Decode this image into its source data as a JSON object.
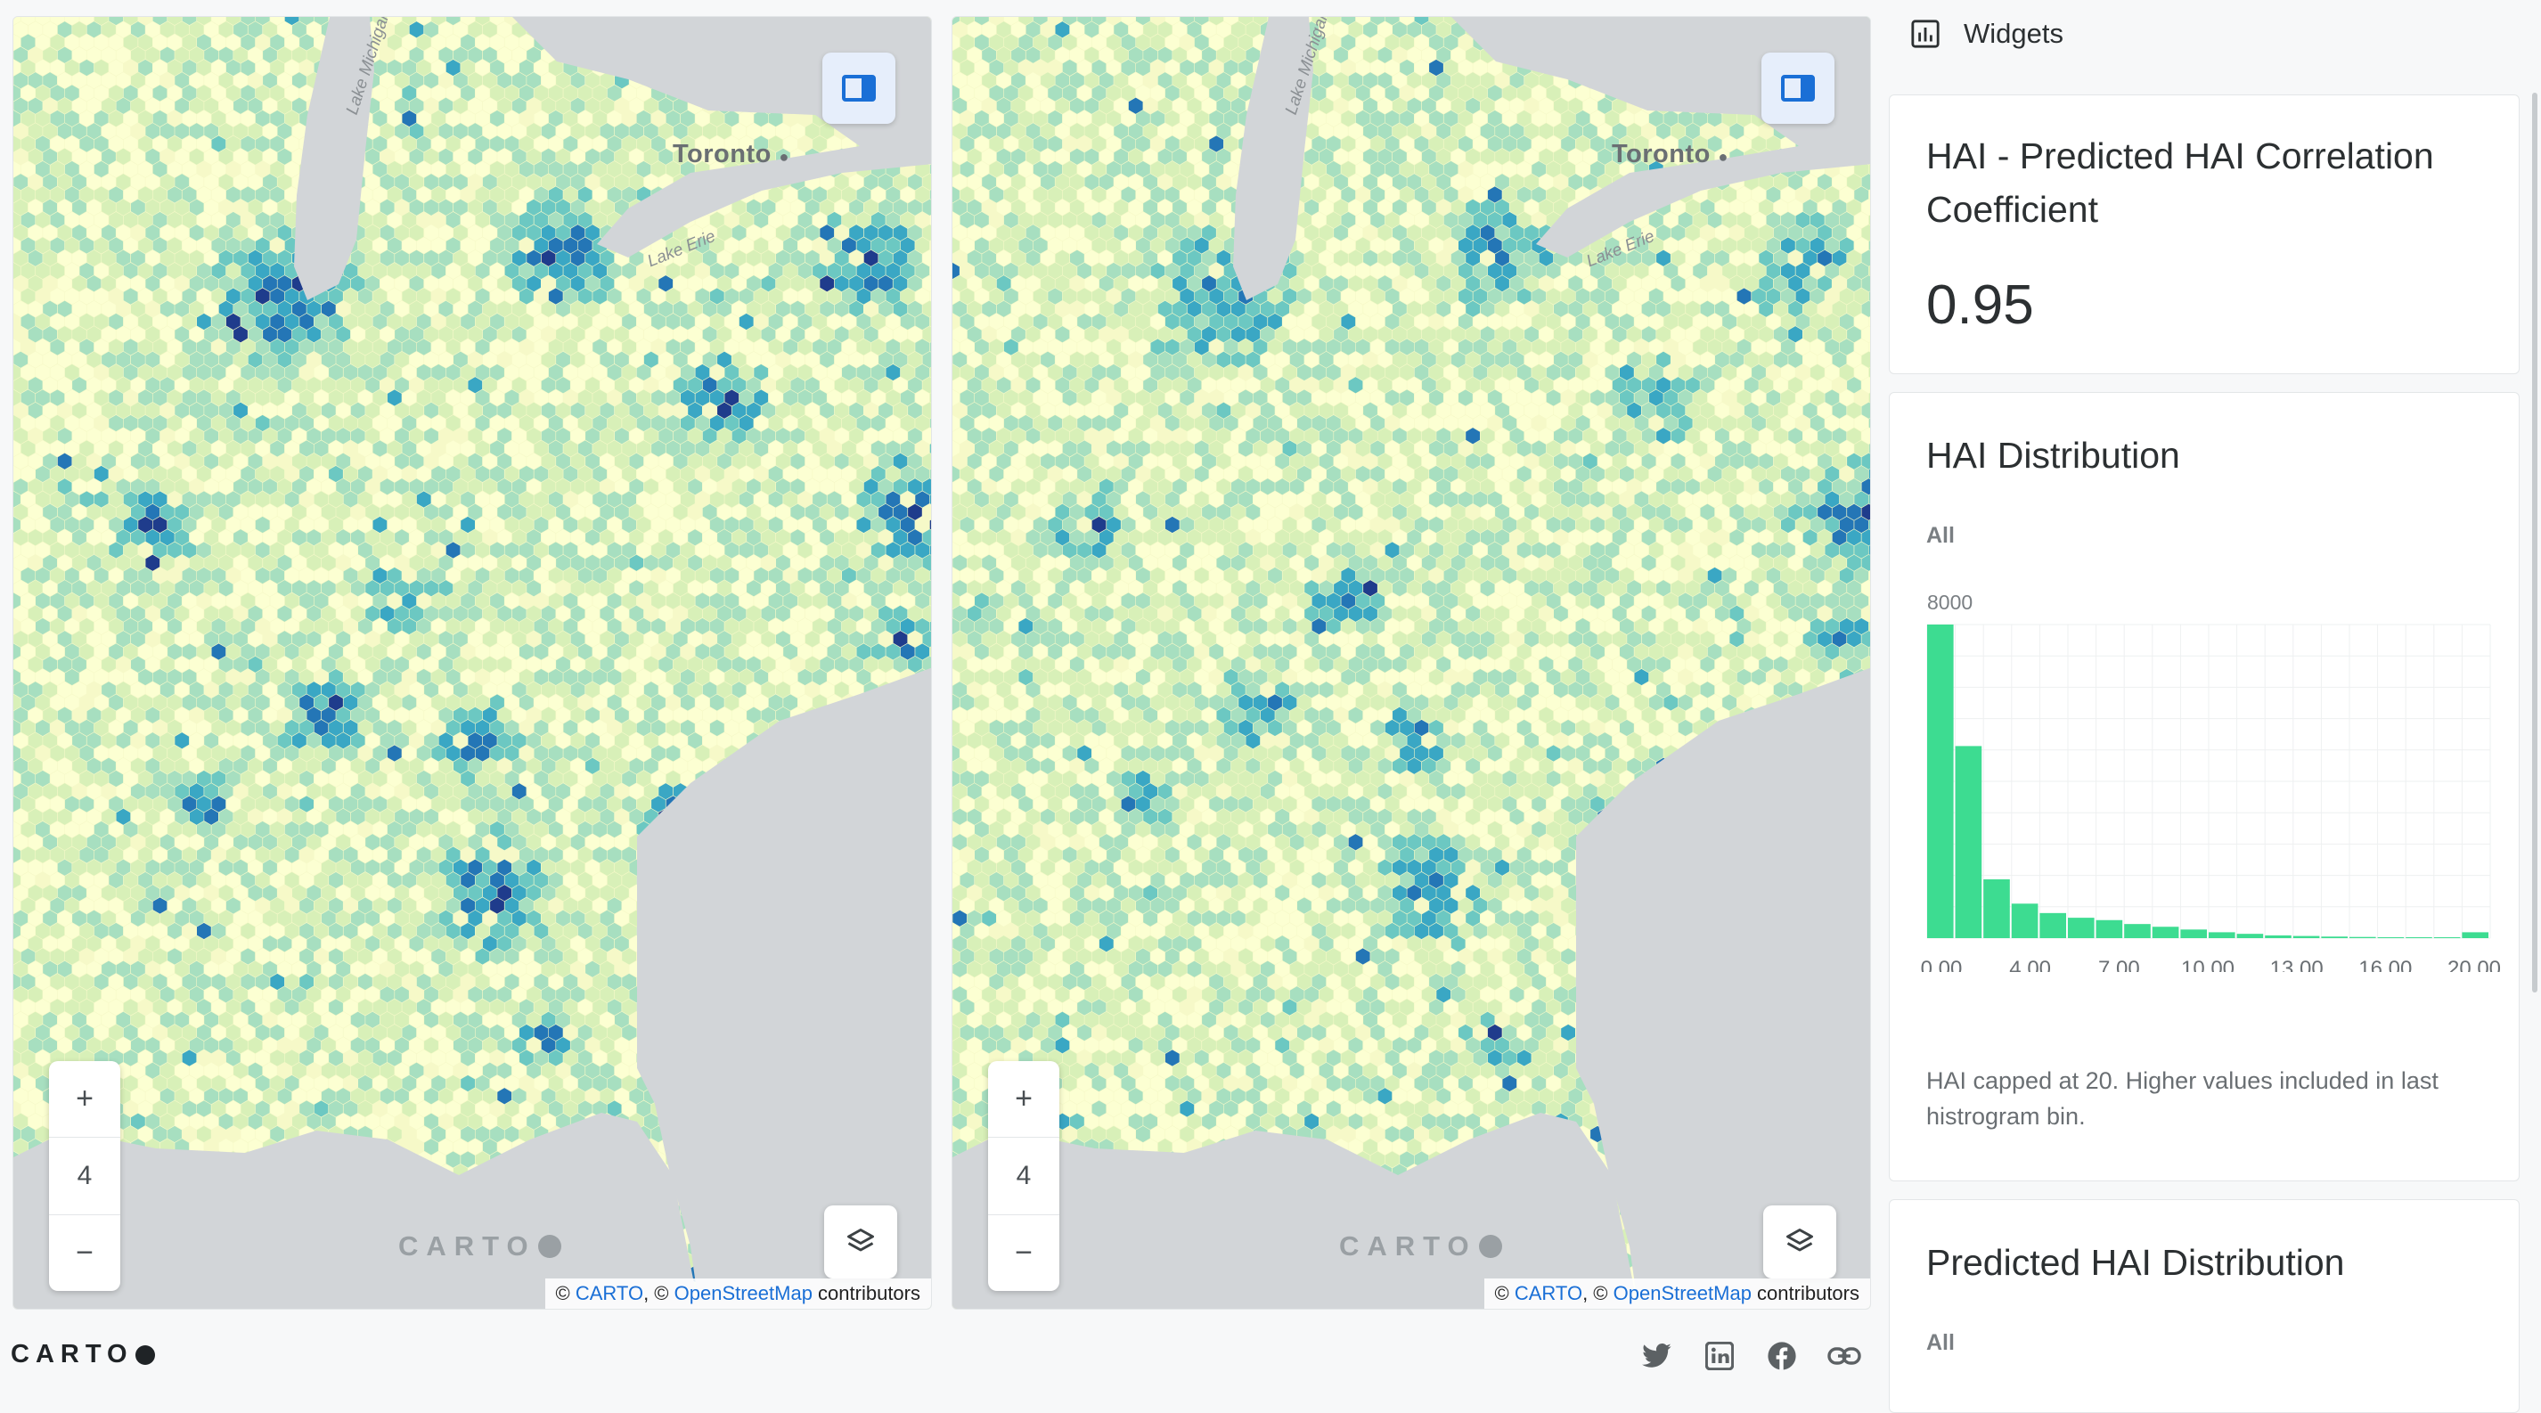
{
  "maps": [
    {
      "id": "left",
      "labels": {
        "city": "Toronto",
        "lake_michigan": "Lake Michigan",
        "lake_erie": "Lake Erie"
      },
      "zoom": {
        "plus": "+",
        "level": "4",
        "minus": "−"
      },
      "watermark": "CARTO",
      "attribution": {
        "prefix": "© ",
        "carto": "CARTO",
        "sep": ", © ",
        "osm": "OpenStreetMap",
        "suffix": " contributors"
      },
      "icons": {
        "panel": "sidebar-toggle-icon",
        "layers": "layers-icon"
      }
    },
    {
      "id": "right",
      "labels": {
        "city": "Toronto",
        "lake_michigan": "Lake Michigan",
        "lake_erie": "Lake Erie"
      },
      "zoom": {
        "plus": "+",
        "level": "4",
        "minus": "−"
      },
      "watermark": "CARTO",
      "attribution": {
        "prefix": "© ",
        "carto": "CARTO",
        "sep": ", © ",
        "osm": "OpenStreetMap",
        "suffix": " contributors"
      },
      "icons": {
        "panel": "sidebar-toggle-icon",
        "layers": "layers-icon"
      }
    }
  ],
  "footer": {
    "logo": "CARTO",
    "social": [
      "twitter-icon",
      "linkedin-icon",
      "facebook-icon",
      "link-icon"
    ]
  },
  "sidebar": {
    "title": "Widgets",
    "icon": "bar-chart-icon",
    "widgets": [
      {
        "title": "HAI - Predicted HAI Correlation Coefficient",
        "value": "0.95"
      },
      {
        "title": "HAI Distribution",
        "filter": "All",
        "note": "HAI capped at 20. Higher values included in last histrogram bin."
      },
      {
        "title": "Predicted HAI Distribution",
        "filter": "All"
      }
    ]
  },
  "colors": {
    "accent": "#1a6fd6",
    "histogram_bar": "#3ddc91",
    "hex_ramp": [
      "#fcffd2",
      "#d8f0b8",
      "#a7dfc0",
      "#6cc8c2",
      "#3aa7c4",
      "#2476b6",
      "#1f3c8c"
    ],
    "land": "#f6f9c8",
    "water": "#d2d5d8"
  },
  "chart_data": {
    "type": "bar",
    "title": "HAI Distribution",
    "ymax_label": "8000",
    "ylim": [
      0,
      8000
    ],
    "x_tick_labels": [
      "0.00",
      "4.00",
      "7.00",
      "10.00",
      "13.00",
      "16.00",
      "20.00"
    ],
    "values": [
      8000,
      4900,
      1500,
      880,
      640,
      520,
      460,
      360,
      290,
      220,
      150,
      110,
      70,
      55,
      40,
      30,
      20,
      15,
      10,
      150
    ],
    "grid": true
  }
}
